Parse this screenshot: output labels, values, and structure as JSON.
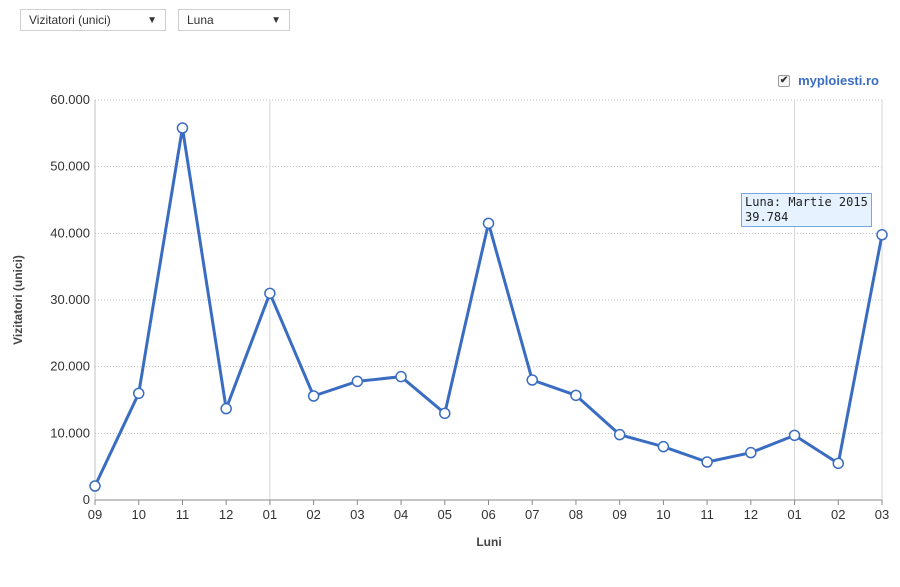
{
  "controls": {
    "metric_select": {
      "value": "Vizitatori (unici)",
      "icon": "triangle-down-icon"
    },
    "period_select": {
      "value": "Luna",
      "icon": "triangle-down-icon"
    }
  },
  "legend": {
    "checked": true,
    "label": "myploiesti.ro",
    "color": "#3a6dc1"
  },
  "tooltip": {
    "line1": "Luna: Martie 2015",
    "line2": "39.784"
  },
  "chart_data": {
    "type": "line",
    "title": "",
    "xlabel": "Luni",
    "ylabel": "Vizitatori (unici)",
    "categories": [
      "09",
      "10",
      "11",
      "12",
      "01",
      "02",
      "03",
      "04",
      "05",
      "06",
      "07",
      "08",
      "09",
      "10",
      "11",
      "12",
      "01",
      "02",
      "03"
    ],
    "series": [
      {
        "name": "myploiesti.ro",
        "color": "#3a6dc1",
        "values": [
          2100,
          16000,
          55800,
          13700,
          31000,
          15600,
          17800,
          18500,
          13000,
          41500,
          18000,
          15700,
          9800,
          8000,
          5700,
          7100,
          9700,
          5500,
          39784
        ]
      }
    ],
    "ylim": [
      0,
      60000
    ],
    "yticks": [
      0,
      10000,
      20000,
      30000,
      40000,
      50000,
      60000
    ],
    "ytick_labels": [
      "0",
      "10.000",
      "20.000",
      "30.000",
      "40.000",
      "50.000",
      "60.000"
    ],
    "grid": true,
    "legend_position": "top-right"
  }
}
